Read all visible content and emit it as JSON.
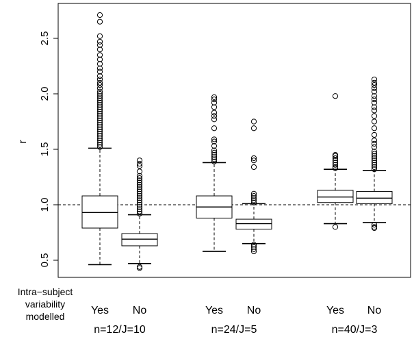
{
  "chart_data": {
    "type": "boxplot",
    "ylabel": "r",
    "ylim": [
      0.38,
      2.78
    ],
    "yticks": [
      0.5,
      1.0,
      1.5,
      2.0,
      2.5
    ],
    "ytick_labels": [
      "0.5",
      "1.0",
      "1.5",
      "2.0",
      "2.5"
    ],
    "reference_line": {
      "y": 1.0,
      "style": "dashed"
    },
    "row_header": [
      "Intra−subject",
      "variability",
      "modelled"
    ],
    "categories": [
      "Yes",
      "No",
      "Yes",
      "No",
      "Yes",
      "No"
    ],
    "groups": [
      "n=12/J=10",
      "n=24/J=5",
      "n=40/J=3"
    ],
    "boxes": [
      {
        "group": "n=12/J=10",
        "modelled": "Yes",
        "whisker_low": 0.46,
        "q1": 0.79,
        "median": 0.93,
        "q3": 1.08,
        "whisker_high": 1.51,
        "outliers": [
          1.52,
          1.54,
          1.56,
          1.58,
          1.6,
          1.62,
          1.64,
          1.66,
          1.68,
          1.7,
          1.72,
          1.74,
          1.76,
          1.78,
          1.8,
          1.82,
          1.84,
          1.86,
          1.88,
          1.9,
          1.92,
          1.94,
          1.96,
          1.98,
          2.0,
          2.02,
          2.05,
          2.08,
          2.1,
          2.13,
          2.16,
          2.2,
          2.23,
          2.27,
          2.31,
          2.35,
          2.4,
          2.44,
          2.47,
          2.52,
          2.65,
          2.71
        ]
      },
      {
        "group": "n=12/J=10",
        "modelled": "No",
        "whisker_low": 0.47,
        "q1": 0.63,
        "median": 0.69,
        "q3": 0.74,
        "whisker_high": 0.91,
        "outliers": [
          0.44,
          0.43,
          0.92,
          0.94,
          0.96,
          0.98,
          1.0,
          1.02,
          1.04,
          1.06,
          1.08,
          1.1,
          1.12,
          1.14,
          1.16,
          1.18,
          1.2,
          1.22,
          1.24,
          1.26,
          1.3,
          1.35,
          1.37,
          1.4
        ]
      },
      {
        "group": "n=24/J=5",
        "modelled": "Yes",
        "whisker_low": 0.58,
        "q1": 0.88,
        "median": 0.98,
        "q3": 1.08,
        "whisker_high": 1.38,
        "outliers": [
          1.39,
          1.41,
          1.43,
          1.45,
          1.47,
          1.49,
          1.53,
          1.57,
          1.59,
          1.69,
          1.77,
          1.8,
          1.83,
          1.88,
          1.92,
          1.95,
          1.97
        ]
      },
      {
        "group": "n=24/J=5",
        "modelled": "No",
        "whisker_low": 0.65,
        "q1": 0.78,
        "median": 0.83,
        "q3": 0.87,
        "whisker_high": 1.01,
        "outliers": [
          0.64,
          0.62,
          0.6,
          0.58,
          1.02,
          1.04,
          1.06,
          1.08,
          1.1,
          1.34,
          1.4,
          1.42,
          1.69,
          1.75
        ]
      },
      {
        "group": "n=40/J=3",
        "modelled": "Yes",
        "whisker_low": 0.83,
        "q1": 1.02,
        "median": 1.07,
        "q3": 1.13,
        "whisker_high": 1.32,
        "outliers": [
          0.8,
          1.33,
          1.34,
          1.36,
          1.38,
          1.4,
          1.42,
          1.44,
          1.45,
          1.98
        ]
      },
      {
        "group": "n=40/J=3",
        "modelled": "No",
        "whisker_low": 0.84,
        "q1": 1.01,
        "median": 1.06,
        "q3": 1.12,
        "whisker_high": 1.31,
        "outliers": [
          0.82,
          0.8,
          0.79,
          1.32,
          1.34,
          1.36,
          1.38,
          1.4,
          1.42,
          1.44,
          1.46,
          1.48,
          1.52,
          1.55,
          1.58,
          1.63,
          1.69,
          1.75,
          1.8,
          1.85,
          1.88,
          1.92,
          1.95,
          1.98,
          2.02,
          2.05,
          2.08,
          2.1,
          2.13
        ]
      }
    ],
    "grid": false,
    "legend": "none"
  }
}
